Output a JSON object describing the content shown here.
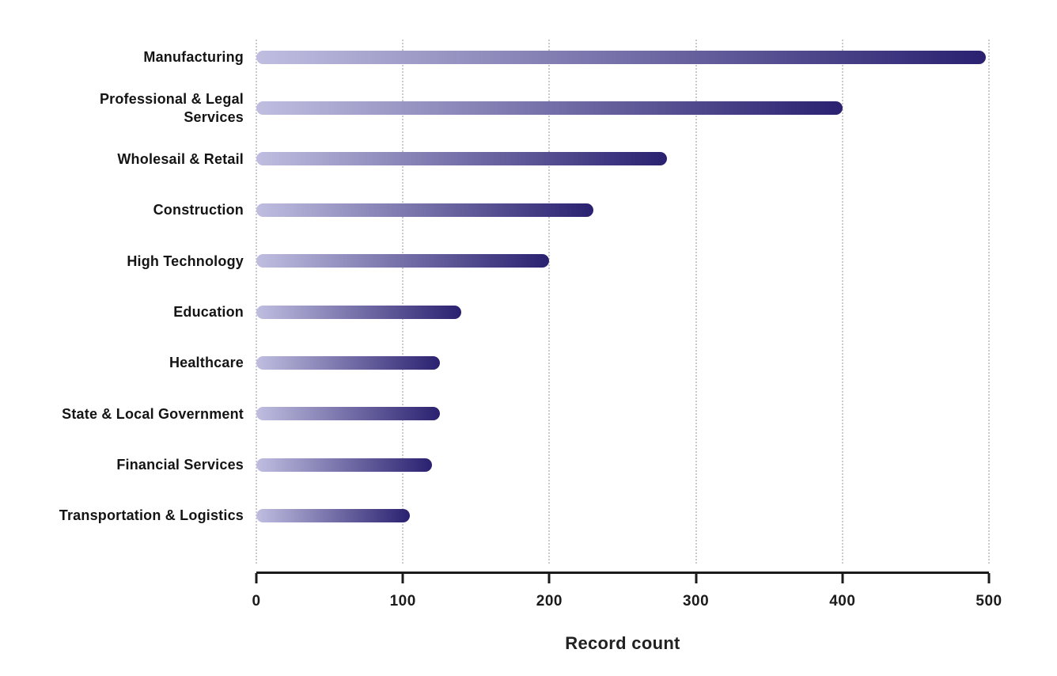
{
  "chart_data": {
    "type": "bar",
    "orientation": "horizontal",
    "title": "",
    "xlabel": "Record count",
    "ylabel": "",
    "categories": [
      "Manufacturing",
      "Professional & Legal Services",
      "Wholesail & Retail",
      "Construction",
      "High Technology",
      "Education",
      "Healthcare",
      "State & Local Government",
      "Financial Services",
      "Transportation & Logistics"
    ],
    "values": [
      498,
      400,
      280,
      230,
      200,
      140,
      125,
      125,
      120,
      105
    ],
    "xlim": [
      0,
      500
    ],
    "x_ticks": [
      "0",
      "100",
      "200",
      "300",
      "400",
      "500"
    ],
    "x_tick_values": [
      0,
      100,
      200,
      300,
      400,
      500
    ],
    "grid": "vertical dotted gridlines at each x tick",
    "legend": "none",
    "bar_gradient": [
      "#bfbee0",
      "#2a2170"
    ]
  },
  "colors": {
    "bar_gradient_start": "#bfbee0",
    "bar_gradient_end": "#2a2170",
    "gridline": "#c9c9cf",
    "axis_line": "#1b1b1b",
    "label_text": "#141414",
    "background": "#ffffff"
  }
}
